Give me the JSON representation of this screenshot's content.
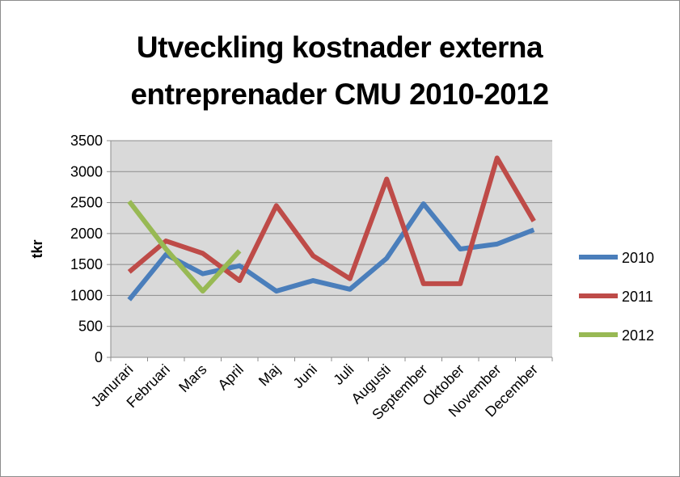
{
  "chart_data": {
    "type": "line",
    "title": "Utveckling kostnader externa entreprenader CMU 2010-2012",
    "y_label": "tkr",
    "categories": [
      "Janurari",
      "Februari",
      "Mars",
      "April",
      "Maj",
      "Juni",
      "Juli",
      "Augusti",
      "September",
      "Oktober",
      "November",
      "December"
    ],
    "series": [
      {
        "name": "2010",
        "color": "#4a7ebb",
        "values": [
          930,
          1660,
          1350,
          1480,
          1070,
          1240,
          1100,
          1600,
          2480,
          1750,
          1830,
          2060
        ]
      },
      {
        "name": "2011",
        "color": "#be4b48",
        "values": [
          1380,
          1880,
          1680,
          1240,
          2450,
          1640,
          1270,
          2880,
          1190,
          1190,
          3220,
          2200
        ]
      },
      {
        "name": "2012",
        "color": "#98b954",
        "values": [
          2520,
          1750,
          1070,
          1720,
          null,
          null,
          null,
          null,
          null,
          null,
          null,
          null
        ]
      }
    ],
    "ylim": [
      0,
      3500
    ],
    "yticks": [
      0,
      500,
      1000,
      1500,
      2000,
      2500,
      3000,
      3500
    ],
    "grid": true,
    "legend": "right"
  }
}
